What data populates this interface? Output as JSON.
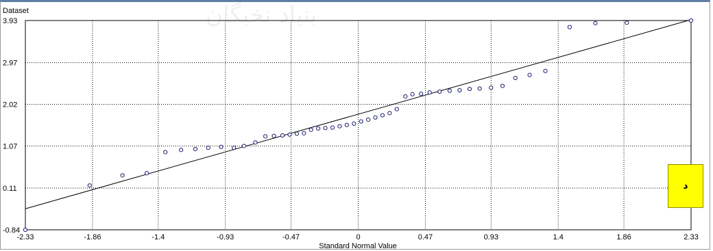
{
  "watermark": "بنیاد نخبگان",
  "badge": {
    "label": "د",
    "color": "#ffff00"
  },
  "chart_data": {
    "type": "scatter",
    "ylabel": "Dataset",
    "xlabel": "Standard Normal Value",
    "xlim": [
      -2.33,
      2.33
    ],
    "ylim": [
      -0.84,
      3.93
    ],
    "x_ticks": [
      "-2.33",
      "-1.86",
      "-1.4",
      "-0.93",
      "-0.47",
      "0",
      "0.47",
      "0.93",
      "1.4",
      "1.86",
      "2.33"
    ],
    "y_ticks": [
      "-0.84",
      "0.11",
      "1.07",
      "2.02",
      "2.97",
      "3.93"
    ],
    "grid": true,
    "marker_color": "#1a1a6e",
    "reference_line": {
      "x": [
        -2.33,
        2.33
      ],
      "y": [
        -0.36,
        3.95
      ]
    },
    "points": [
      {
        "x": -2.33,
        "y": -0.84
      },
      {
        "x": -1.88,
        "y": 0.17
      },
      {
        "x": -1.65,
        "y": 0.4
      },
      {
        "x": -1.48,
        "y": 0.45
      },
      {
        "x": -1.35,
        "y": 0.93
      },
      {
        "x": -1.24,
        "y": 0.98
      },
      {
        "x": -1.14,
        "y": 1.0
      },
      {
        "x": -1.05,
        "y": 1.03
      },
      {
        "x": -0.96,
        "y": 1.05
      },
      {
        "x": -0.87,
        "y": 1.03
      },
      {
        "x": -0.8,
        "y": 1.07
      },
      {
        "x": -0.72,
        "y": 1.15
      },
      {
        "x": -0.65,
        "y": 1.29
      },
      {
        "x": -0.59,
        "y": 1.3
      },
      {
        "x": -0.53,
        "y": 1.31
      },
      {
        "x": -0.48,
        "y": 1.33
      },
      {
        "x": -0.43,
        "y": 1.35
      },
      {
        "x": -0.38,
        "y": 1.36
      },
      {
        "x": -0.33,
        "y": 1.44
      },
      {
        "x": -0.28,
        "y": 1.47
      },
      {
        "x": -0.23,
        "y": 1.48
      },
      {
        "x": -0.18,
        "y": 1.49
      },
      {
        "x": -0.13,
        "y": 1.52
      },
      {
        "x": -0.08,
        "y": 1.55
      },
      {
        "x": -0.03,
        "y": 1.58
      },
      {
        "x": 0.02,
        "y": 1.63
      },
      {
        "x": 0.07,
        "y": 1.67
      },
      {
        "x": 0.12,
        "y": 1.72
      },
      {
        "x": 0.17,
        "y": 1.77
      },
      {
        "x": 0.22,
        "y": 1.82
      },
      {
        "x": 0.27,
        "y": 1.91
      },
      {
        "x": 0.33,
        "y": 2.2
      },
      {
        "x": 0.38,
        "y": 2.25
      },
      {
        "x": 0.44,
        "y": 2.26
      },
      {
        "x": 0.5,
        "y": 2.29
      },
      {
        "x": 0.57,
        "y": 2.31
      },
      {
        "x": 0.64,
        "y": 2.33
      },
      {
        "x": 0.71,
        "y": 2.34
      },
      {
        "x": 0.78,
        "y": 2.37
      },
      {
        "x": 0.85,
        "y": 2.38
      },
      {
        "x": 0.93,
        "y": 2.4
      },
      {
        "x": 1.01,
        "y": 2.44
      },
      {
        "x": 1.1,
        "y": 2.62
      },
      {
        "x": 1.2,
        "y": 2.69
      },
      {
        "x": 1.31,
        "y": 2.78
      },
      {
        "x": 1.48,
        "y": 3.78
      },
      {
        "x": 1.66,
        "y": 3.87
      },
      {
        "x": 1.88,
        "y": 3.88
      },
      {
        "x": 2.33,
        "y": 3.93
      }
    ]
  }
}
